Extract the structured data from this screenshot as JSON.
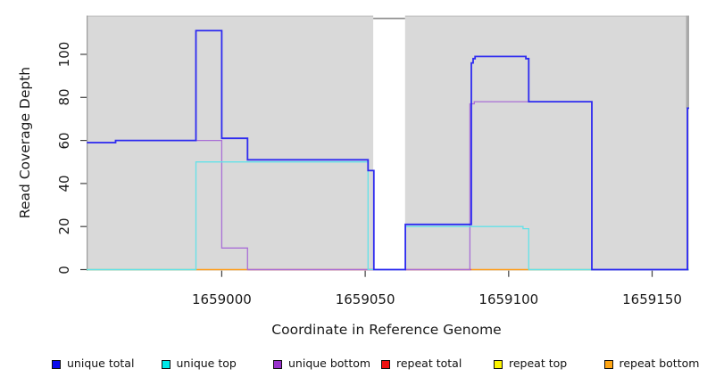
{
  "chart_data": {
    "type": "line",
    "subtype": "step-coverage",
    "title": "",
    "xlabel": "Coordinate in Reference Genome",
    "ylabel": "Read Coverage Depth",
    "xlim": [
      1658952.9,
      1659162.9
    ],
    "ylim": [
      0,
      118
    ],
    "x_ticks": [
      "1659000",
      "1659050",
      "1659100",
      "1659150"
    ],
    "x_tick_values": [
      1659000,
      1659050,
      1659100,
      1659150
    ],
    "y_ticks": [
      "0",
      "20",
      "40",
      "60",
      "80",
      "100"
    ],
    "y_tick_values": [
      0,
      20,
      40,
      60,
      80,
      100
    ],
    "grid": false,
    "plot_bg": "#d9d9d9",
    "masked_region": {
      "from": 1659052.8,
      "to": 1659063.9,
      "color": "#ffffff",
      "top_edge_color": "#8f8f8f"
    },
    "series": [
      {
        "name": "unique bottom",
        "color": "#a96fd6",
        "width": 1.3,
        "points": [
          [
            1658953,
            59
          ],
          [
            1658963,
            60
          ],
          [
            1659000,
            10
          ],
          [
            1659009,
            0
          ],
          [
            1659086.5,
            77
          ],
          [
            1659088,
            78
          ],
          [
            1659129,
            0
          ]
        ]
      },
      {
        "name": "unique top",
        "color": "#63e1e8",
        "width": 1.3,
        "points": [
          [
            1658953,
            0
          ],
          [
            1658991,
            50
          ],
          [
            1659051,
            0
          ],
          [
            1659064,
            20
          ],
          [
            1659105,
            19
          ],
          [
            1659107,
            0
          ]
        ]
      },
      {
        "name": "unique total",
        "color": "#2d2af0",
        "width": 1.8,
        "points": [
          [
            1658953,
            59
          ],
          [
            1658963,
            60
          ],
          [
            1658991,
            111
          ],
          [
            1659000,
            61
          ],
          [
            1659009,
            51
          ],
          [
            1659051,
            46
          ],
          [
            1659053,
            0
          ],
          [
            1659064,
            21
          ],
          [
            1659087,
            96
          ],
          [
            1659087.6,
            98
          ],
          [
            1659088.3,
            99
          ],
          [
            1659106,
            98
          ],
          [
            1659107,
            78
          ],
          [
            1659129,
            0
          ],
          [
            1659162.3,
            75
          ]
        ]
      }
    ],
    "zero_line_segments": [
      {
        "name": "unique-top-over-repeat-top",
        "from": 1658952.9,
        "to": 1658991,
        "color": "#85dc8b"
      },
      {
        "name": "repeat-bottom",
        "from": 1658991,
        "to": 1659009,
        "color": "#ff9d1c"
      },
      {
        "name": "repeat-total",
        "from": 1659009,
        "to": 1659052.8,
        "color": "#d5526d"
      },
      {
        "name": "repeat-total",
        "from": 1659063.9,
        "to": 1659087,
        "color": "#d5526d"
      },
      {
        "name": "repeat-bottom",
        "from": 1659087,
        "to": 1659107,
        "color": "#ff9d1c"
      },
      {
        "name": "unique-top-over-repeat-top",
        "from": 1659107,
        "to": 1659129,
        "color": "#85dc8b"
      }
    ],
    "legend_position": "bottom"
  },
  "axes": {
    "x_title": "Coordinate in Reference Genome",
    "y_title": "Read Coverage Depth"
  },
  "legend": {
    "items": [
      {
        "label": "unique total",
        "color": "#0b0bee"
      },
      {
        "label": "unique top",
        "color": "#00e8e8"
      },
      {
        "label": "unique bottom",
        "color": "#9932cc"
      },
      {
        "label": "repeat total",
        "color": "#ee1111"
      },
      {
        "label": "repeat top",
        "color": "#fdf500"
      },
      {
        "label": "repeat bottom",
        "color": "#ffa513"
      }
    ]
  }
}
